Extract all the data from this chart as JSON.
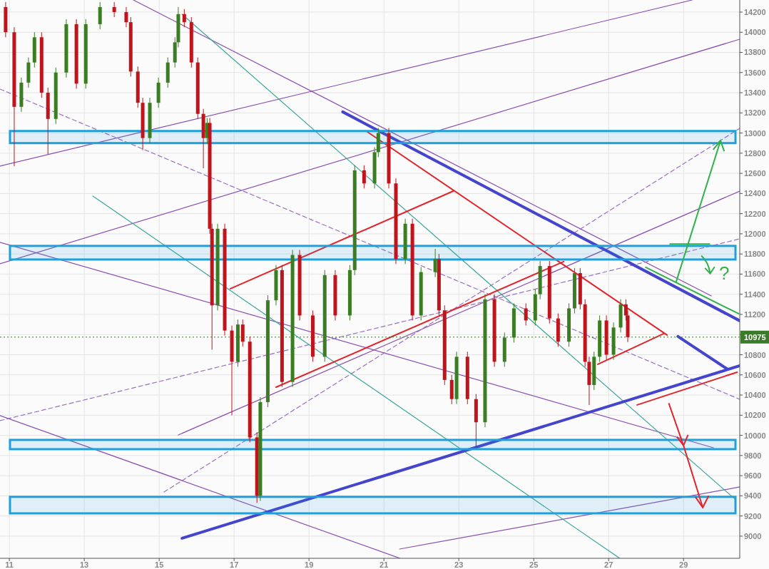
{
  "chart_data": {
    "type": "candlestick",
    "xlim": [
      10.75,
      30.5
    ],
    "ylim": [
      8780,
      14320
    ],
    "xticks": [
      11,
      13,
      15,
      17,
      19,
      21,
      23,
      25,
      27,
      29
    ],
    "yticks": [
      9000,
      9200,
      9400,
      9600,
      9800,
      10000,
      10200,
      10400,
      10600,
      10800,
      {
        "value": 11000,
        "label": null
      },
      11200,
      11400,
      11600,
      11800,
      12000,
      12200,
      12400,
      12600,
      12800,
      13000,
      13200,
      13400,
      13600,
      13800,
      14000,
      14200
    ],
    "grid": true,
    "x": [
      10.9,
      11.13,
      11.32,
      11.51,
      11.67,
      11.86,
      12.03,
      12.24,
      12.52,
      12.79,
      13.04,
      13.42,
      13.8,
      14.12,
      14.24,
      14.43,
      14.56,
      14.75,
      14.98,
      15.23,
      15.42,
      15.51,
      15.67,
      15.86,
      16.03,
      16.18,
      16.28,
      16.35,
      16.41,
      16.56,
      16.75,
      16.94,
      17.1,
      17.23,
      17.42,
      17.61,
      17.7,
      17.9,
      18.12,
      18.28,
      18.56,
      18.75,
      19.1,
      19.42,
      19.7,
      20.09,
      20.22,
      20.47,
      20.75,
      20.85,
      21.13,
      21.32,
      21.57,
      21.76,
      21.99,
      22.37,
      22.47,
      22.62,
      22.81,
      22.94,
      23.23,
      23.46,
      23.7,
      23.95,
      24.22,
      24.47,
      24.79,
      25.04,
      25.17,
      25.42,
      25.65,
      25.94,
      26.09,
      26.24,
      26.37,
      26.48,
      26.61,
      26.76,
      26.94,
      27.13,
      27.32,
      27.46,
      27.51
    ],
    "ohlc": [
      [
        14250,
        14300,
        13950,
        14000
      ],
      [
        14000,
        14050,
        12670,
        13260
      ],
      [
        13260,
        13550,
        13210,
        13500
      ],
      [
        13500,
        13750,
        13450,
        13700
      ],
      [
        13700,
        14000,
        13650,
        13950
      ],
      [
        13950,
        14000,
        13350,
        13400
      ],
      [
        13400,
        13450,
        12790,
        13140
      ],
      [
        13140,
        13650,
        13090,
        13600
      ],
      [
        13600,
        14130,
        13550,
        14080
      ],
      [
        14080,
        14130,
        13440,
        13490
      ],
      [
        13490,
        14130,
        13440,
        14080
      ],
      [
        14080,
        14300,
        14030,
        14250
      ],
      [
        14250,
        14300,
        14150,
        14200
      ],
      [
        14200,
        14250,
        14050,
        14100
      ],
      [
        14100,
        14150,
        13560,
        13610
      ],
      [
        13610,
        13660,
        13250,
        13300
      ],
      [
        13300,
        13350,
        12830,
        12950
      ],
      [
        12950,
        13350,
        12900,
        13300
      ],
      [
        13300,
        13550,
        13250,
        13500
      ],
      [
        13500,
        13750,
        13450,
        13700
      ],
      [
        13700,
        13950,
        13650,
        13900
      ],
      [
        13900,
        14250,
        13850,
        14180
      ],
      [
        14180,
        14230,
        14050,
        14100
      ],
      [
        14100,
        14150,
        13650,
        13700
      ],
      [
        13700,
        13750,
        13140,
        13190
      ],
      [
        13190,
        13240,
        12650,
        12950
      ],
      [
        12950,
        13150,
        12900,
        13100
      ],
      [
        13100,
        13150,
        12000,
        12050
      ],
      [
        12050,
        12100,
        10850,
        11290
      ],
      [
        11290,
        12100,
        11240,
        12050
      ],
      [
        12050,
        12100,
        10990,
        11040
      ],
      [
        11040,
        11090,
        10200,
        10730
      ],
      [
        10730,
        11150,
        10680,
        11100
      ],
      [
        11100,
        11150,
        10880,
        10930
      ],
      [
        10930,
        10980,
        9930,
        9980
      ],
      [
        9980,
        10030,
        9330,
        9400
      ],
      [
        9400,
        10380,
        9350,
        10330
      ],
      [
        10330,
        11390,
        10280,
        11340
      ],
      [
        11340,
        11690,
        11290,
        11640
      ],
      [
        11640,
        11690,
        10480,
        10530
      ],
      [
        10530,
        11840,
        10480,
        11790
      ],
      [
        11790,
        11840,
        11140,
        11190
      ],
      [
        11190,
        11240,
        10730,
        10780
      ],
      [
        10780,
        11640,
        10730,
        11590
      ],
      [
        11590,
        11640,
        11140,
        11190
      ],
      [
        11190,
        11690,
        11140,
        11640
      ],
      [
        11640,
        12680,
        11590,
        12630
      ],
      [
        12630,
        12680,
        12450,
        12500
      ],
      [
        12500,
        12860,
        12450,
        12810
      ],
      [
        12810,
        13050,
        12760,
        13000
      ],
      [
        13000,
        13050,
        12450,
        12500
      ],
      [
        12500,
        12550,
        11700,
        11750
      ],
      [
        11750,
        12150,
        11700,
        12100
      ],
      [
        12100,
        12150,
        11140,
        11190
      ],
      [
        11190,
        11670,
        11140,
        11620
      ],
      [
        11620,
        11850,
        11570,
        11750
      ],
      [
        11750,
        11800,
        11190,
        11240
      ],
      [
        11240,
        11290,
        10500,
        10550
      ],
      [
        10550,
        10600,
        10310,
        10360
      ],
      [
        10360,
        10830,
        10310,
        10780
      ],
      [
        10780,
        10830,
        10310,
        10360
      ],
      [
        10360,
        10410,
        9880,
        10130
      ],
      [
        10130,
        11400,
        10080,
        11350
      ],
      [
        11350,
        11400,
        10680,
        10730
      ],
      [
        10730,
        11020,
        10680,
        10970
      ],
      [
        10970,
        11310,
        10920,
        11260
      ],
      [
        11260,
        11310,
        11090,
        11140
      ],
      [
        11140,
        11450,
        11090,
        11400
      ],
      [
        11400,
        11730,
        11350,
        11680
      ],
      [
        11680,
        11730,
        11110,
        11160
      ],
      [
        11160,
        11210,
        10880,
        10930
      ],
      [
        10930,
        11310,
        10880,
        11260
      ],
      [
        11260,
        11660,
        11210,
        11610
      ],
      [
        11610,
        11660,
        11250,
        11300
      ],
      [
        11300,
        11350,
        10680,
        10730
      ],
      [
        10730,
        10780,
        10300,
        10500
      ],
      [
        10500,
        10830,
        10450,
        10780
      ],
      [
        10780,
        11190,
        10730,
        11140
      ],
      [
        11140,
        11190,
        10750,
        10800
      ],
      [
        10800,
        11120,
        10750,
        11070
      ],
      [
        11070,
        11350,
        11020,
        11300
      ],
      [
        11300,
        11350,
        11140,
        11190
      ],
      [
        11190,
        11240,
        10925,
        10975
      ]
    ],
    "colors": [
      "#c0141c",
      "#c0141c",
      "#3b7d23",
      "#3b7d23",
      "#3b7d23",
      "#c0141c",
      "#c0141c",
      "#3b7d23",
      "#3b7d23",
      "#c0141c",
      "#3b7d23",
      "#3b7d23",
      "#c0141c",
      "#c0141c",
      "#c0141c",
      "#c0141c",
      "#c0141c",
      "#3b7d23",
      "#3b7d23",
      "#3b7d23",
      "#3b7d23",
      "#3b7d23",
      "#c0141c",
      "#c0141c",
      "#c0141c",
      "#c0141c",
      "#3b7d23",
      "#c0141c",
      "#c0141c",
      "#3b7d23",
      "#c0141c",
      "#c0141c",
      "#3b7d23",
      "#c0141c",
      "#c0141c",
      "#c0141c",
      "#3b7d23",
      "#3b7d23",
      "#3b7d23",
      "#c0141c",
      "#3b7d23",
      "#c0141c",
      "#c0141c",
      "#3b7d23",
      "#c0141c",
      "#3b7d23",
      "#3b7d23",
      "#c0141c",
      "#3b7d23",
      "#3b7d23",
      "#c0141c",
      "#c0141c",
      "#3b7d23",
      "#c0141c",
      "#3b7d23",
      "#3b7d23",
      "#c0141c",
      "#c0141c",
      "#c0141c",
      "#3b7d23",
      "#c0141c",
      "#c0141c",
      "#3b7d23",
      "#c0141c",
      "#3b7d23",
      "#3b7d23",
      "#c0141c",
      "#3b7d23",
      "#3b7d23",
      "#c0141c",
      "#c0141c",
      "#3b7d23",
      "#3b7d23",
      "#c0141c",
      "#c0141c",
      "#c0141c",
      "#3b7d23",
      "#3b7d23",
      "#c0141c",
      "#3b7d23",
      "#3b7d23",
      "#c0141c",
      "#c0141c"
    ],
    "series": [
      {
        "type": "line",
        "color": "#8a4fb0",
        "x": [
          10.75,
          29.23
        ],
        "values": [
          12672,
          14320
        ]
      },
      {
        "type": "line",
        "color": "#8a4fb0",
        "x": [
          14.31,
          29.74
        ],
        "values": [
          14320,
          11384
        ]
      },
      {
        "type": "line",
        "color": "#8a4fb0",
        "x": [
          10.75,
          29.8
        ],
        "values": [
          11915,
          9877
        ]
      },
      {
        "type": "line",
        "color": "#8a4fb0",
        "x": [
          10.75,
          30.5
        ],
        "values": [
          11703,
          13931
        ]
      },
      {
        "type": "line",
        "color": "#8a4fb0",
        "x": [
          21.42,
          30.5
        ],
        "values": [
          8872,
          9488
        ]
      },
      {
        "type": "line",
        "color": "#8a4fb0",
        "x": [
          10.75,
          21.42
        ],
        "values": [
          10196,
          8781
        ]
      },
      {
        "type": "line",
        "color": "#8a4fb0",
        "x": [
          15.51,
          30.5
        ],
        "values": [
          10004,
          12424
        ]
      },
      {
        "type": "line",
        "color": "#9a70c0",
        "line_style": "dashed",
        "x": [
          10.75,
          30.5
        ],
        "values": [
          13436,
          10358
        ]
      },
      {
        "type": "line",
        "color": "#9a70c0",
        "line_style": "dashed",
        "x": [
          15.13,
          30.5
        ],
        "values": [
          9438,
          13047
        ]
      },
      {
        "type": "line",
        "color": "#9a70c0",
        "line_style": "dashed",
        "x": [
          10.75,
          30.5
        ],
        "values": [
          10146,
          11950
        ]
      },
      {
        "type": "line",
        "color": "#3aa89a",
        "x": [
          15.61,
          30.37
        ],
        "values": [
          14179,
          9368
        ]
      },
      {
        "type": "line",
        "color": "#3aa89a",
        "x": [
          13.23,
          27.29
        ],
        "values": [
          12375,
          8781
        ]
      },
      {
        "type": "line",
        "color": "#4444cc",
        "x": [
          19.9,
          30.5
        ],
        "values": [
          13210,
          11137
        ]
      },
      {
        "type": "line",
        "color": "#4444cc",
        "x": [
          15.61,
          30.5
        ],
        "values": [
          8979,
          10691
        ]
      },
      {
        "type": "line",
        "color": "#4444cc",
        "x": [
          28.85,
          30.18
        ],
        "values": [
          10981,
          10655
        ]
      },
      {
        "type": "line",
        "color": "#e0262c",
        "x": [
          20.56,
          28.56
        ],
        "values": [
          13011,
          10995
        ]
      },
      {
        "type": "line",
        "color": "#e0262c",
        "x": [
          16.9,
          22.85
        ],
        "values": [
          11455,
          12424
        ]
      },
      {
        "type": "line",
        "color": "#e0262c",
        "x": [
          18.12,
          25.8
        ],
        "values": [
          10478,
          11724
        ]
      },
      {
        "type": "line",
        "color": "#e0262c",
        "x": [
          26.71,
          28.47
        ],
        "values": [
          10705,
          11009
        ]
      },
      {
        "type": "line",
        "color": "#e0262c",
        "x": [
          27.76,
          30.43
        ],
        "values": [
          10302,
          10627
        ]
      },
      {
        "type": "line",
        "color": "#2fb24a",
        "x": [
          27.99,
          30.47
        ],
        "values": [
          11667,
          11207
        ]
      }
    ],
    "bands": [
      {
        "axis": "y",
        "from": 12900,
        "to": 13020,
        "color": "#1ea0dc"
      },
      {
        "axis": "y",
        "from": 11745,
        "to": 11880,
        "color": "#1ea0dc"
      },
      {
        "axis": "y",
        "from": 9863,
        "to": 9955,
        "color": "#1ea0dc"
      },
      {
        "axis": "y",
        "from": 9226,
        "to": 9390,
        "color": "#1ea0dc"
      }
    ],
    "ref_lines": [
      {
        "axis": "y",
        "value": 10975,
        "label": "10975",
        "color": "#3a7a28",
        "line_style": "dotted"
      }
    ],
    "annotations": [
      {
        "text": "?",
        "x": 29.17,
        "y": 11880
      }
    ]
  }
}
